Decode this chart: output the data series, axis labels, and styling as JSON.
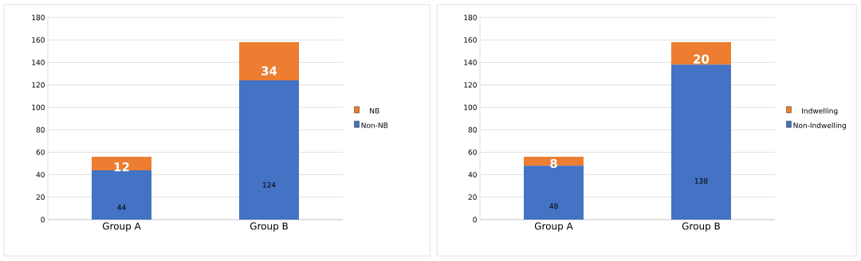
{
  "chart_data": [
    {
      "type": "bar",
      "stacked": true,
      "categories": [
        "Group A",
        "Group B"
      ],
      "series": [
        {
          "name": "Non-NB",
          "color": "#4472c4",
          "values": [
            44,
            124
          ]
        },
        {
          "name": "NB",
          "color": "#ed7d31",
          "values": [
            12,
            34
          ]
        }
      ],
      "ylim": [
        0,
        180
      ],
      "yticks": [
        0,
        20,
        40,
        60,
        80,
        100,
        120,
        140,
        160,
        180
      ],
      "grid": "y",
      "legend": "right",
      "data_labels": true
    },
    {
      "type": "bar",
      "stacked": true,
      "categories": [
        "Group A",
        "Group B"
      ],
      "series": [
        {
          "name": "Non-Indwelling",
          "color": "#4472c4",
          "values": [
            48,
            138
          ]
        },
        {
          "name": "Indwelling",
          "color": "#ed7d31",
          "values": [
            8,
            20
          ]
        }
      ],
      "ylim": [
        0,
        180
      ],
      "yticks": [
        0,
        20,
        40,
        60,
        80,
        100,
        120,
        140,
        160,
        180
      ],
      "grid": "y",
      "legend": "right",
      "data_labels": true
    }
  ]
}
